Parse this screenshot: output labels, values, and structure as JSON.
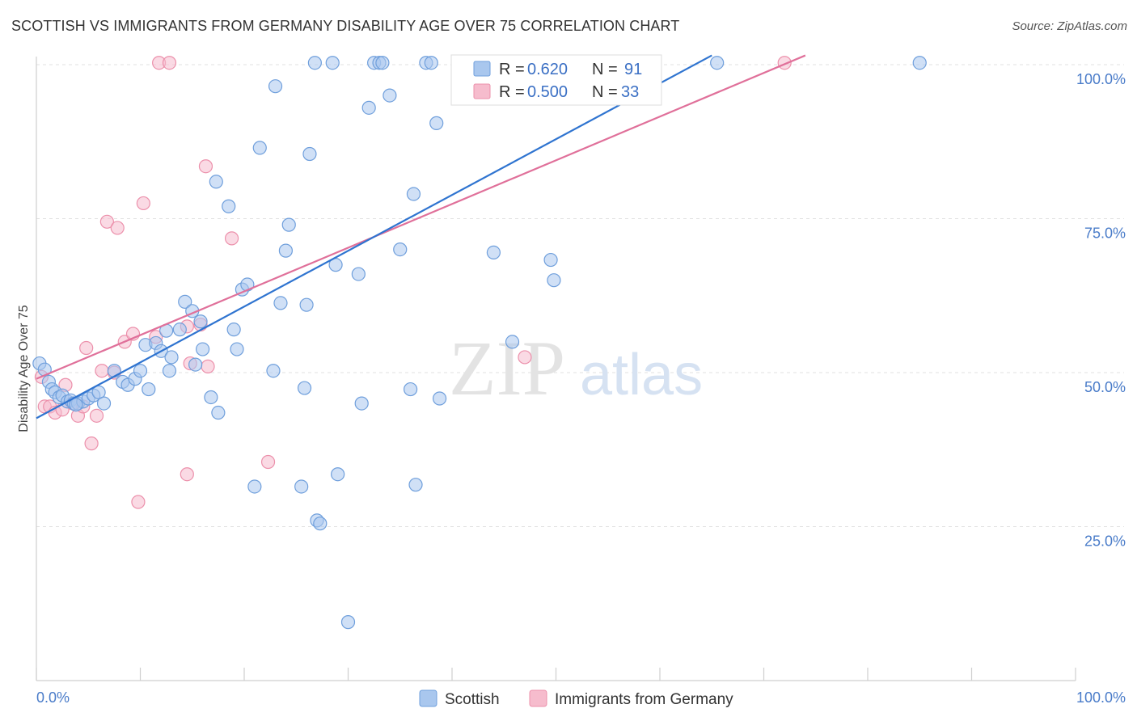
{
  "header": {
    "title": "SCOTTISH VS IMMIGRANTS FROM GERMANY DISABILITY AGE OVER 75 CORRELATION CHART",
    "source": "Source: ZipAtlas.com"
  },
  "watermark": {
    "zip": "ZIP",
    "atlas": "atlas"
  },
  "legend": {
    "r_label": "R =",
    "n_label": "N =",
    "series": [
      {
        "r": "0.620",
        "n": "91"
      },
      {
        "r": "0.500",
        "n": "33"
      }
    ]
  },
  "colors": {
    "scottish_fill": "#a9c7ee",
    "scottish_stroke": "#6f9fdc",
    "scottish_line": "#2f74d0",
    "germany_fill": "#f6bccd",
    "germany_stroke": "#ec90ab",
    "germany_line": "#e0709a",
    "grid": "#e2e2e2",
    "tick_text": "#4a7cc9"
  },
  "chart_data": {
    "type": "scatter",
    "title": "SCOTTISH VS IMMIGRANTS FROM GERMANY DISABILITY AGE OVER 75 CORRELATION CHART",
    "xlabel": "",
    "ylabel": "Disability Age Over 75",
    "xlim": [
      0,
      100
    ],
    "ylim": [
      0,
      103
    ],
    "x_tick_labels": [
      "0.0%",
      "100.0%"
    ],
    "y_ticks": [
      25,
      50,
      75,
      100
    ],
    "y_tick_labels": [
      "25.0%",
      "50.0%",
      "75.0%",
      "100.0%"
    ],
    "grid": true,
    "legend_position": "top-center",
    "series": [
      {
        "name": "Scottish",
        "r": 0.62,
        "n": 91,
        "trend": {
          "x": [
            0,
            65
          ],
          "y": [
            42.6,
            101.5
          ]
        },
        "points": [
          [
            0.3,
            51.5
          ],
          [
            0.8,
            50.5
          ],
          [
            1.2,
            48.5
          ],
          [
            1.5,
            47.3
          ],
          [
            1.8,
            46.8
          ],
          [
            2.2,
            46.0
          ],
          [
            2.5,
            46.3
          ],
          [
            3.0,
            45.3
          ],
          [
            3.3,
            45.5
          ],
          [
            3.6,
            45.0
          ],
          [
            4.0,
            45.0
          ],
          [
            4.5,
            45.3
          ],
          [
            5.0,
            45.8
          ],
          [
            5.5,
            46.3
          ],
          [
            6.0,
            46.8
          ],
          [
            6.5,
            45.0
          ],
          [
            7.5,
            50.3
          ],
          [
            8.3,
            48.5
          ],
          [
            8.8,
            48.0
          ],
          [
            9.5,
            49.0
          ],
          [
            10.0,
            50.3
          ],
          [
            10.5,
            54.5
          ],
          [
            10.8,
            47.3
          ],
          [
            11.5,
            54.8
          ],
          [
            12.0,
            53.5
          ],
          [
            12.5,
            56.8
          ],
          [
            12.8,
            50.3
          ],
          [
            13.0,
            52.5
          ],
          [
            13.8,
            57.0
          ],
          [
            14.3,
            61.5
          ],
          [
            15.0,
            60.0
          ],
          [
            15.3,
            51.3
          ],
          [
            15.8,
            58.3
          ],
          [
            16.0,
            53.8
          ],
          [
            16.8,
            46.0
          ],
          [
            17.5,
            43.5
          ],
          [
            17.3,
            81.0
          ],
          [
            18.5,
            77.0
          ],
          [
            19.0,
            57.0
          ],
          [
            19.3,
            53.8
          ],
          [
            19.8,
            63.5
          ],
          [
            20.3,
            64.3
          ],
          [
            21.0,
            31.5
          ],
          [
            21.5,
            86.5
          ],
          [
            22.8,
            50.3
          ],
          [
            23.0,
            96.5
          ],
          [
            23.5,
            61.3
          ],
          [
            24.0,
            69.8
          ],
          [
            24.3,
            74.0
          ],
          [
            25.5,
            31.5
          ],
          [
            25.8,
            47.5
          ],
          [
            26.0,
            61.0
          ],
          [
            26.3,
            85.5
          ],
          [
            26.8,
            100.3
          ],
          [
            27.0,
            26.0
          ],
          [
            27.3,
            25.5
          ],
          [
            28.5,
            100.3
          ],
          [
            28.8,
            67.5
          ],
          [
            29.0,
            33.5
          ],
          [
            30.0,
            9.5
          ],
          [
            31.0,
            66.0
          ],
          [
            31.3,
            45.0
          ],
          [
            32.0,
            93.0
          ],
          [
            32.5,
            100.3
          ],
          [
            33.0,
            100.3
          ],
          [
            33.3,
            100.3
          ],
          [
            34.0,
            95.0
          ],
          [
            35.0,
            70.0
          ],
          [
            36.0,
            47.3
          ],
          [
            36.3,
            79.0
          ],
          [
            36.5,
            31.8
          ],
          [
            37.5,
            100.3
          ],
          [
            38.0,
            100.3
          ],
          [
            38.5,
            90.5
          ],
          [
            38.8,
            45.8
          ],
          [
            41.5,
            100.3
          ],
          [
            42.0,
            100.3
          ],
          [
            44.0,
            69.5
          ],
          [
            45.0,
            100.3
          ],
          [
            45.8,
            55.0
          ],
          [
            47.0,
            100.3
          ],
          [
            49.0,
            100.3
          ],
          [
            49.5,
            68.3
          ],
          [
            49.8,
            65.0
          ],
          [
            53.0,
            100.3
          ],
          [
            55.5,
            100.3
          ],
          [
            56.5,
            100.3
          ],
          [
            59.5,
            100.3
          ],
          [
            65.5,
            100.3
          ],
          [
            85.0,
            100.3
          ],
          [
            3.8,
            44.8
          ]
        ]
      },
      {
        "name": "Immigrants from Germany",
        "r": 0.5,
        "n": 33,
        "trend": {
          "x": [
            0,
            74
          ],
          "y": [
            49.0,
            101.5
          ]
        },
        "points": [
          [
            0.5,
            49.3
          ],
          [
            0.8,
            44.5
          ],
          [
            1.3,
            44.5
          ],
          [
            1.8,
            43.5
          ],
          [
            2.5,
            44.0
          ],
          [
            2.8,
            48.0
          ],
          [
            3.5,
            45.0
          ],
          [
            4.0,
            43.0
          ],
          [
            4.5,
            44.5
          ],
          [
            4.8,
            54.0
          ],
          [
            5.3,
            38.5
          ],
          [
            5.8,
            43.0
          ],
          [
            6.3,
            50.3
          ],
          [
            6.8,
            74.5
          ],
          [
            7.5,
            50.0
          ],
          [
            7.8,
            73.5
          ],
          [
            8.5,
            55.0
          ],
          [
            9.3,
            56.3
          ],
          [
            9.8,
            29.0
          ],
          [
            10.3,
            77.5
          ],
          [
            11.5,
            55.8
          ],
          [
            11.8,
            100.3
          ],
          [
            12.8,
            100.3
          ],
          [
            14.5,
            57.5
          ],
          [
            14.5,
            33.5
          ],
          [
            14.8,
            51.5
          ],
          [
            15.8,
            57.8
          ],
          [
            16.3,
            83.5
          ],
          [
            16.5,
            51.0
          ],
          [
            18.8,
            71.8
          ],
          [
            22.3,
            35.5
          ],
          [
            47.0,
            52.5
          ],
          [
            72.0,
            100.3
          ]
        ]
      }
    ]
  }
}
